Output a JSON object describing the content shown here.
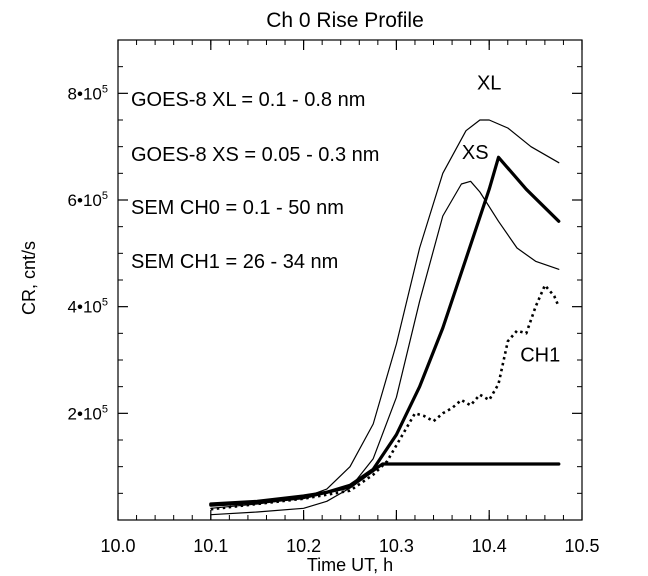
{
  "chart_data": {
    "type": "line",
    "title": "Ch 0 Rise Profile",
    "xlabel": "Time UT, h",
    "ylabel": "CR, cnt/s",
    "xlim": [
      10.0,
      10.5
    ],
    "ylim": [
      0,
      900000
    ],
    "x_ticks": [
      {
        "value": 10.0,
        "label": "10.0"
      },
      {
        "value": 10.1,
        "label": "10.1"
      },
      {
        "value": 10.2,
        "label": "10.2"
      },
      {
        "value": 10.3,
        "label": "10.3"
      },
      {
        "value": 10.4,
        "label": "10.4"
      },
      {
        "value": 10.5,
        "label": "10.5"
      }
    ],
    "y_ticks": [
      {
        "value": 200000,
        "mant": "2",
        "exp": "5"
      },
      {
        "value": 400000,
        "mant": "4",
        "exp": "5"
      },
      {
        "value": 600000,
        "mant": "6",
        "exp": "5"
      },
      {
        "value": 800000,
        "mant": "8",
        "exp": "5"
      }
    ],
    "y_tick_sep": "•",
    "y_tick_base": "10",
    "grid": false,
    "annotations": [
      "GOES-8 XL = 0.1 - 0.8 nm",
      "GOES-8 XS = 0.05 - 0.3 nm",
      "SEM CH0 = 0.1 - 50 nm",
      "SEM CH1 = 26 - 34 nm"
    ],
    "series": [
      {
        "name": "XL",
        "style": "thin",
        "x": [
          10.1,
          10.15,
          10.2,
          10.225,
          10.25,
          10.275,
          10.3,
          10.325,
          10.35,
          10.375,
          10.39,
          10.4,
          10.42,
          10.445,
          10.475
        ],
        "y": [
          22000,
          30000,
          42000,
          58000,
          100000,
          180000,
          330000,
          510000,
          650000,
          730000,
          750000,
          750000,
          735000,
          700000,
          670000
        ]
      },
      {
        "name": "XS",
        "style": "thin",
        "x": [
          10.1,
          10.15,
          10.2,
          10.225,
          10.25,
          10.275,
          10.3,
          10.325,
          10.35,
          10.37,
          10.38,
          10.39,
          10.41,
          10.43,
          10.45,
          10.475
        ],
        "y": [
          10000,
          15000,
          22000,
          35000,
          60000,
          115000,
          230000,
          410000,
          570000,
          630000,
          635000,
          615000,
          560000,
          510000,
          485000,
          470000
        ]
      },
      {
        "name": "",
        "style": "thick",
        "x": [
          10.1,
          10.15,
          10.2,
          10.225,
          10.25,
          10.275,
          10.3,
          10.325,
          10.35,
          10.375,
          10.4,
          10.41,
          10.44,
          10.475
        ],
        "y": [
          30000,
          35000,
          45000,
          52000,
          65000,
          95000,
          160000,
          250000,
          360000,
          490000,
          620000,
          680000,
          620000,
          560000
        ]
      },
      {
        "name": "",
        "style": "thick",
        "x": [
          10.1,
          10.15,
          10.2,
          10.25,
          10.285,
          10.3,
          10.35,
          10.4,
          10.45,
          10.475
        ],
        "y": [
          28000,
          33000,
          42000,
          62000,
          105000,
          105000,
          105000,
          105000,
          105000,
          105000
        ]
      },
      {
        "name": "CH1",
        "style": "dotted",
        "x": [
          10.1,
          10.15,
          10.2,
          10.25,
          10.275,
          10.29,
          10.3,
          10.31,
          10.32,
          10.33,
          10.34,
          10.35,
          10.36,
          10.37,
          10.38,
          10.39,
          10.4,
          10.41,
          10.42,
          10.43,
          10.44,
          10.45,
          10.46,
          10.47,
          10.475
        ],
        "y": [
          20000,
          30000,
          40000,
          55000,
          85000,
          110000,
          140000,
          170000,
          200000,
          195000,
          185000,
          200000,
          210000,
          225000,
          215000,
          235000,
          225000,
          255000,
          335000,
          355000,
          350000,
          400000,
          440000,
          420000,
          400000
        ]
      }
    ],
    "series_labels": [
      {
        "text": "XL",
        "x": 10.4,
        "y": 820000
      },
      {
        "text": "XS",
        "x": 10.385,
        "y": 690000
      },
      {
        "text": "CH1",
        "x": 10.455,
        "y": 310000
      }
    ]
  }
}
